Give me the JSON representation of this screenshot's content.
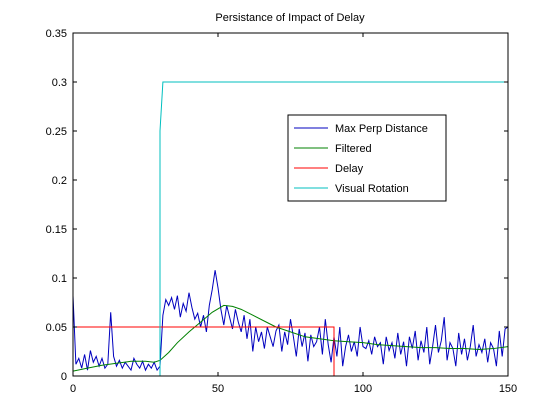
{
  "chart_data": {
    "type": "line",
    "title": "Persistance of Impact of Delay",
    "xlabel": "",
    "ylabel": "",
    "xlim": [
      0,
      150
    ],
    "ylim": [
      0,
      0.35
    ],
    "xticks": [
      0,
      50,
      100,
      150
    ],
    "yticks": [
      0,
      0.05,
      0.1,
      0.15,
      0.2,
      0.25,
      0.3,
      0.35
    ],
    "xtick_labels": [
      "0",
      "50",
      "100",
      "150"
    ],
    "ytick_labels": [
      "0",
      "0.05",
      "0.1",
      "0.15",
      "0.2",
      "0.25",
      "0.3",
      "0.35"
    ],
    "grid": false,
    "legend_position": "upper-right-inside",
    "series": [
      {
        "name": "Max Perp Distance",
        "color": "#0000bf",
        "x": [
          0,
          1,
          2,
          3,
          4,
          5,
          6,
          7,
          8,
          9,
          10,
          11,
          12,
          13,
          14,
          15,
          16,
          17,
          18,
          19,
          20,
          21,
          22,
          23,
          24,
          25,
          26,
          27,
          28,
          29,
          30,
          31,
          32,
          33,
          34,
          35,
          36,
          37,
          38,
          39,
          40,
          41,
          42,
          43,
          44,
          45,
          46,
          47,
          48,
          49,
          50,
          51,
          52,
          53,
          54,
          55,
          56,
          57,
          58,
          59,
          60,
          61,
          62,
          63,
          64,
          65,
          66,
          67,
          68,
          69,
          70,
          71,
          72,
          73,
          74,
          75,
          76,
          77,
          78,
          79,
          80,
          81,
          82,
          83,
          84,
          85,
          86,
          87,
          88,
          89,
          90,
          91,
          92,
          93,
          94,
          95,
          96,
          97,
          98,
          99,
          100,
          101,
          102,
          103,
          104,
          105,
          106,
          107,
          108,
          109,
          110,
          111,
          112,
          113,
          114,
          115,
          116,
          117,
          118,
          119,
          120,
          121,
          122,
          123,
          124,
          125,
          126,
          127,
          128,
          129,
          130,
          131,
          132,
          133,
          134,
          135,
          136,
          137,
          138,
          139,
          140,
          141,
          142,
          143,
          144,
          145,
          146,
          147,
          148,
          149,
          150
        ],
        "values": [
          0.082,
          0.012,
          0.018,
          0.008,
          0.022,
          0.006,
          0.026,
          0.014,
          0.02,
          0.01,
          0.018,
          0.008,
          0.012,
          0.065,
          0.02,
          0.01,
          0.016,
          0.008,
          0.014,
          0.01,
          0.006,
          0.018,
          0.012,
          0.008,
          0.015,
          0.006,
          0.012,
          0.008,
          0.014,
          0.006,
          0.01,
          0.062,
          0.078,
          0.072,
          0.08,
          0.068,
          0.082,
          0.06,
          0.074,
          0.066,
          0.085,
          0.07,
          0.058,
          0.064,
          0.05,
          0.062,
          0.045,
          0.072,
          0.088,
          0.108,
          0.09,
          0.068,
          0.052,
          0.072,
          0.06,
          0.048,
          0.068,
          0.055,
          0.045,
          0.062,
          0.038,
          0.058,
          0.025,
          0.05,
          0.035,
          0.045,
          0.028,
          0.05,
          0.04,
          0.03,
          0.046,
          0.052,
          0.025,
          0.045,
          0.032,
          0.058,
          0.04,
          0.02,
          0.048,
          0.03,
          0.044,
          0.015,
          0.042,
          0.03,
          0.035,
          0.05,
          0.022,
          0.058,
          0.032,
          0.014,
          0.04,
          0.02,
          0.05,
          0.01,
          0.03,
          0.042,
          0.025,
          0.035,
          0.02,
          0.05,
          0.03,
          0.028,
          0.036,
          0.022,
          0.04,
          0.03,
          0.034,
          0.012,
          0.04,
          0.026,
          0.034,
          0.018,
          0.044,
          0.022,
          0.035,
          0.01,
          0.04,
          0.028,
          0.046,
          0.016,
          0.036,
          0.024,
          0.05,
          0.012,
          0.03,
          0.052,
          0.024,
          0.036,
          0.06,
          0.016,
          0.034,
          0.028,
          0.01,
          0.044,
          0.022,
          0.038,
          0.016,
          0.03,
          0.052,
          0.02,
          0.032,
          0.024,
          0.038,
          0.014,
          0.034,
          0.028,
          0.01,
          0.046,
          0.02,
          0.048,
          0.05
        ]
      },
      {
        "name": "Filtered",
        "color": "#008000",
        "x": [
          0,
          5,
          10,
          15,
          20,
          25,
          28,
          30,
          33,
          36,
          40,
          44,
          48,
          52,
          55,
          58,
          62,
          66,
          70,
          75,
          80,
          85,
          90,
          95,
          100,
          105,
          110,
          115,
          120,
          125,
          130,
          135,
          140,
          145,
          150
        ],
        "values": [
          0.005,
          0.008,
          0.011,
          0.013,
          0.015,
          0.015,
          0.014,
          0.016,
          0.024,
          0.034,
          0.045,
          0.055,
          0.065,
          0.072,
          0.071,
          0.068,
          0.062,
          0.056,
          0.05,
          0.045,
          0.04,
          0.038,
          0.036,
          0.035,
          0.034,
          0.032,
          0.031,
          0.03,
          0.029,
          0.029,
          0.028,
          0.028,
          0.027,
          0.028,
          0.03
        ]
      },
      {
        "name": "Delay",
        "color": "#ff0000",
        "x": [
          0,
          90,
          90
        ],
        "values": [
          0.05,
          0.05,
          0
        ]
      },
      {
        "name": "Visual Rotation",
        "color": "#00bfbf",
        "x": [
          0,
          30,
          30,
          31,
          150
        ],
        "values": [
          0,
          0,
          0.25,
          0.3,
          0.3
        ]
      }
    ]
  }
}
